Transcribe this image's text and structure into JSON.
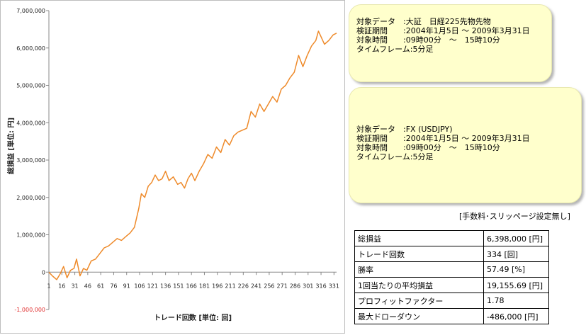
{
  "chart_data": {
    "type": "line",
    "xlabel": "トレード回数 [単位: 回]",
    "ylabel": "総損益 [単位: 円]",
    "ylim": [
      -1000000,
      7000000
    ],
    "xlim": [
      1,
      334
    ],
    "y_ticks": [
      "7,000,000",
      "6,000,000",
      "5,000,000",
      "4,000,000",
      "3,000,000",
      "2,000,000",
      "1,000,000",
      "0",
      "-1,000,000"
    ],
    "y_tick_values": [
      7000000,
      6000000,
      5000000,
      4000000,
      3000000,
      2000000,
      1000000,
      0,
      -1000000
    ],
    "x_ticks": [
      "1",
      "16",
      "31",
      "46",
      "61",
      "76",
      "91",
      "106",
      "121",
      "136",
      "151",
      "166",
      "181",
      "196",
      "211",
      "226",
      "241",
      "256",
      "271",
      "286",
      "301",
      "316",
      "331"
    ],
    "grid": false,
    "line_color": "#ee8a2a",
    "series": [
      {
        "x": [
          1,
          5,
          10,
          14,
          18,
          22,
          26,
          30,
          33,
          37,
          41,
          45,
          50,
          55,
          60,
          65,
          70,
          75,
          80,
          85,
          90,
          95,
          100,
          105,
          108,
          112,
          116,
          120,
          124,
          128,
          132,
          136,
          140,
          145,
          150,
          154,
          158,
          162,
          166,
          170,
          175,
          180,
          185,
          190,
          195,
          200,
          205,
          210,
          215,
          220,
          225,
          230,
          235,
          240,
          245,
          250,
          255,
          260,
          265,
          270,
          275,
          280,
          285,
          290,
          295,
          300,
          305,
          310,
          313,
          316,
          320,
          325,
          330,
          334
        ],
        "values": [
          0,
          -100000,
          -200000,
          -50000,
          150000,
          -150000,
          50000,
          100000,
          350000,
          -100000,
          100000,
          50000,
          300000,
          350000,
          500000,
          650000,
          700000,
          800000,
          900000,
          850000,
          950000,
          1050000,
          1200000,
          1700000,
          2100000,
          2000000,
          2300000,
          2400000,
          2600000,
          2450000,
          2500000,
          2700000,
          2450000,
          2550000,
          2350000,
          2400000,
          2250000,
          2500000,
          2650000,
          2450000,
          2700000,
          2900000,
          3150000,
          3050000,
          3350000,
          3200000,
          3550000,
          3400000,
          3650000,
          3750000,
          3800000,
          3850000,
          4300000,
          4150000,
          4500000,
          4300000,
          4500000,
          4700000,
          4550000,
          4900000,
          5000000,
          5200000,
          5350000,
          5800000,
          5500000,
          5800000,
          6050000,
          6200000,
          6450000,
          6300000,
          6100000,
          6200000,
          6350000,
          6398000
        ]
      }
    ]
  },
  "info_box_1": {
    "lines": [
      "対象データ　:大証　日経225先物先物",
      "検証期間　　:2004年1月5日 ～ 2009年3月31日",
      "対象時間　　:09時00分　～　15時10分",
      "タイムフレーム:5分足"
    ]
  },
  "info_box_2": {
    "lines": [
      "対象データ　:FX (USDJPY)",
      "検証期間　　:2004年1月5日 ～ 2009年3月31日",
      "対象時間　　:09時00分　～　15時10分",
      "タイムフレーム:5分足"
    ]
  },
  "fee_note": "[手数料･スリッページ設定無し]",
  "stats": [
    {
      "label": "総損益",
      "value": "6,398,000 [円]"
    },
    {
      "label": "トレード回数",
      "value": "334 [回]"
    },
    {
      "label": "勝率",
      "value": "57.49 [%]"
    },
    {
      "label": "1回当たりの平均損益",
      "value": "19,155.69 [円]"
    },
    {
      "label": "プロフィットファクター",
      "value": "1.78"
    },
    {
      "label": "最大ドローダウン",
      "value": "-486,000 [円]"
    }
  ]
}
